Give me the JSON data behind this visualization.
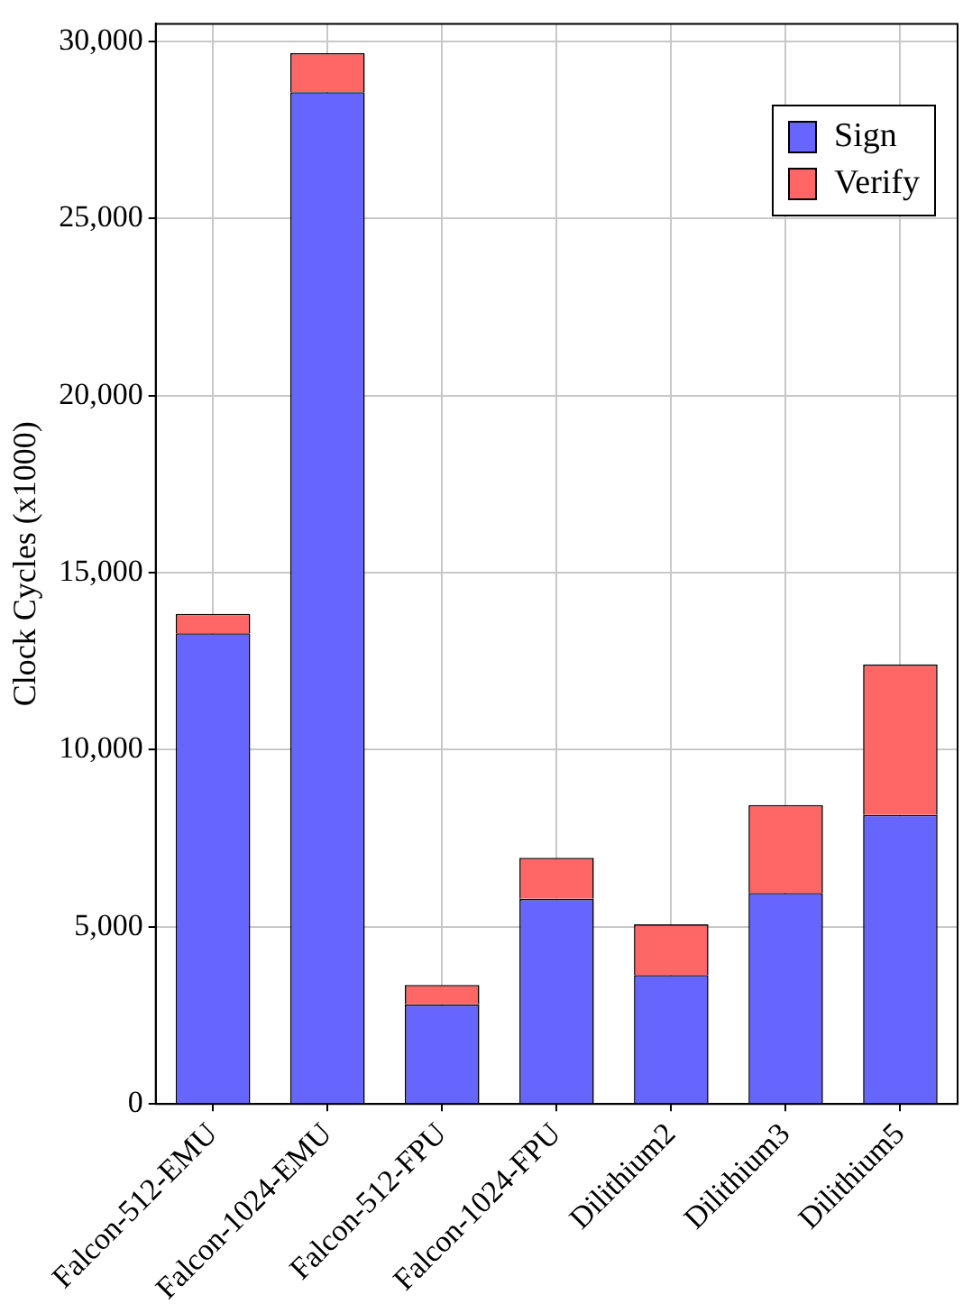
{
  "chart_data": {
    "type": "bar",
    "stacked": true,
    "ylabel": "Clock Cycles (x1000)",
    "categories": [
      "Falcon-512-EMU",
      "Falcon-1024-EMU",
      "Falcon-512-FPU",
      "Falcon-1024-FPU",
      "Dilithium2",
      "Dilithium3",
      "Dilithium5"
    ],
    "series": [
      {
        "name": "Sign",
        "color": "#6666ff",
        "values": [
          13290,
          28570,
          2810,
          5790,
          3640,
          5960,
          8160
        ]
      },
      {
        "name": "Verify",
        "color": "#ff6666",
        "values": [
          550,
          1100,
          550,
          1160,
          1430,
          2480,
          4250
        ]
      }
    ],
    "ylim": [
      0,
      30500
    ],
    "yticks": [
      0,
      {
        "value": 5000,
        "label": "5,000"
      },
      {
        "value": 10000,
        "label": "10,000"
      },
      {
        "value": 15000,
        "label": "15,000"
      },
      {
        "value": 20000,
        "label": "20,000"
      },
      {
        "value": 25000,
        "label": "25,000"
      },
      {
        "value": 30000,
        "label": "30,000"
      }
    ],
    "grid": true,
    "legend": "top right"
  }
}
